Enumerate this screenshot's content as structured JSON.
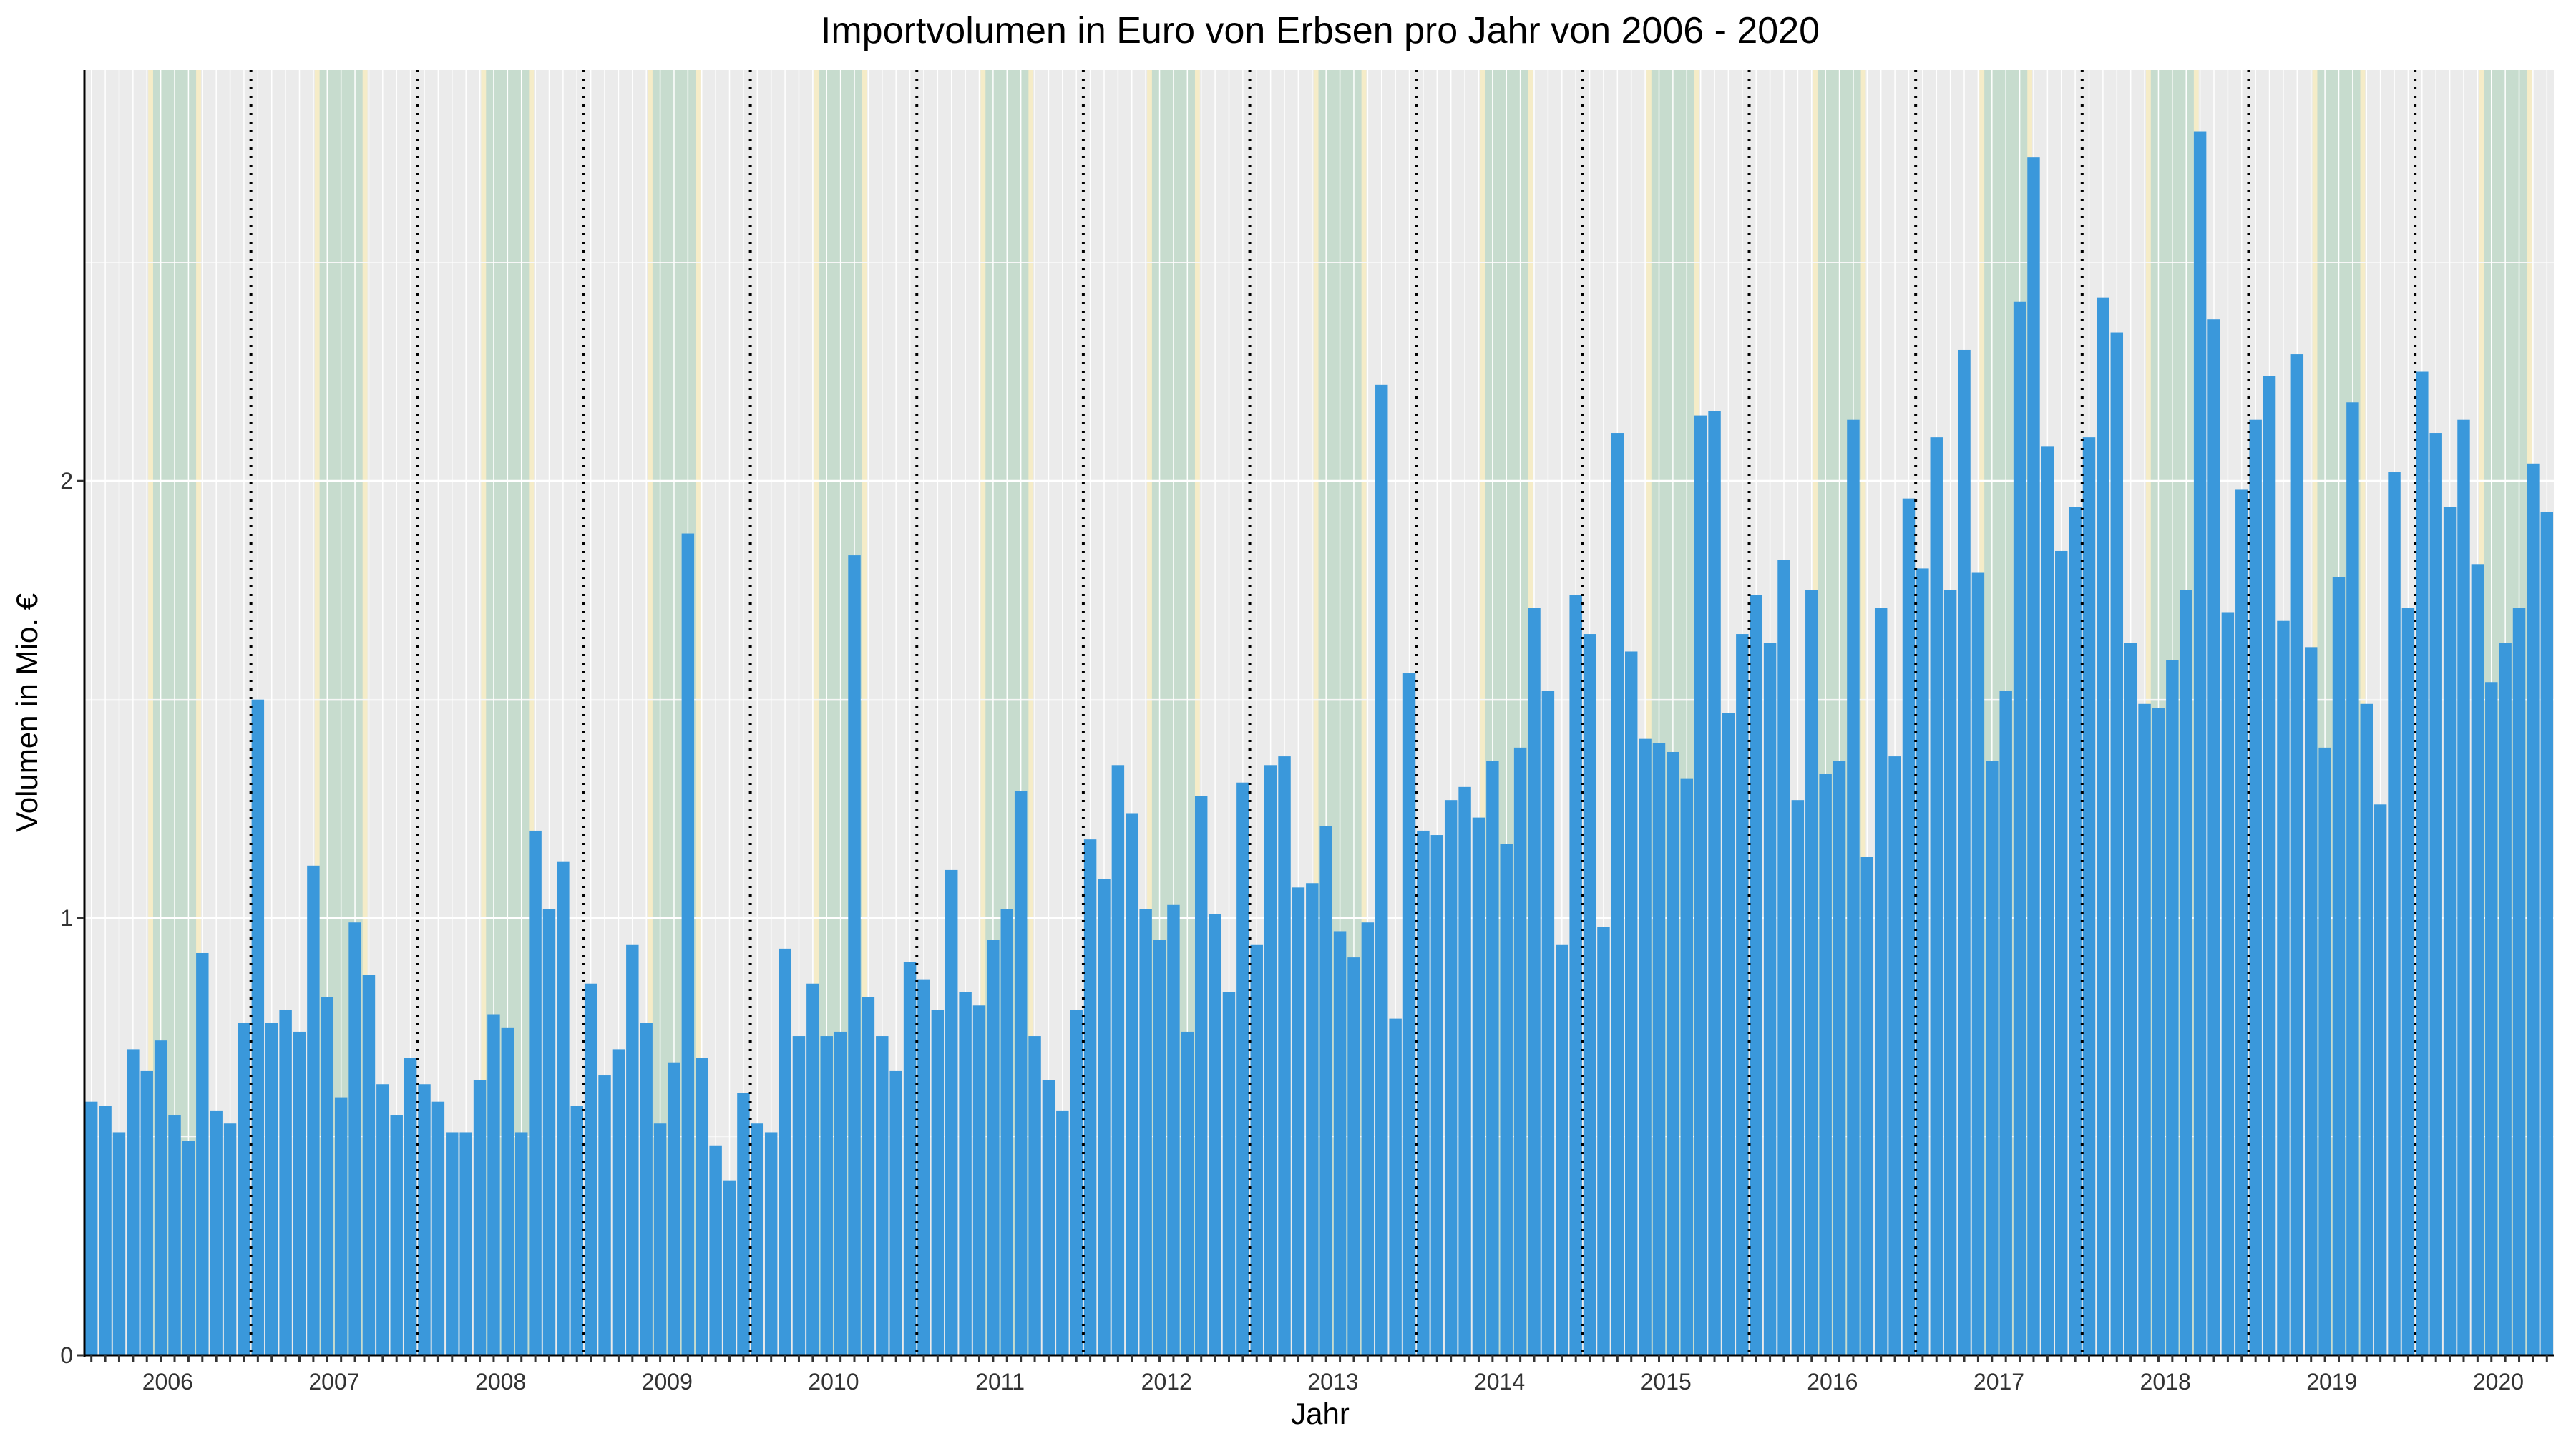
{
  "chart_data": {
    "type": "bar",
    "title": "Importvolumen in Euro von Erbsen pro Jahr von 2006 - 2020",
    "xlabel": "Jahr",
    "ylabel": "Volumen in Mio. €",
    "x_tick_labels": [
      "2006",
      "2007",
      "2008",
      "2009",
      "2010",
      "2011",
      "2012",
      "2013",
      "2014",
      "2015",
      "2016",
      "2017",
      "2018",
      "2019",
      "2020"
    ],
    "y_ticks": [
      0,
      1,
      2
    ],
    "y_tick_labels": [
      "0",
      "1",
      "2"
    ],
    "ylim": [
      0,
      2.94
    ],
    "unit": "Mio. €",
    "frequency": "monthly",
    "start": "2006-01",
    "months_per_year": 12,
    "summer_months_highlighted": [
      "Jun",
      "Jul",
      "Aug"
    ],
    "year_separators": "dotted",
    "bar_color": "#3a98db",
    "panel_color": "#ebebeb",
    "summer_band_colors": [
      "#f5ecc8",
      "#c2dace"
    ],
    "values": [
      0.58,
      0.57,
      0.51,
      0.7,
      0.65,
      0.72,
      0.55,
      0.49,
      0.92,
      0.56,
      0.53,
      0.76,
      1.5,
      0.76,
      0.79,
      0.74,
      1.12,
      0.82,
      0.59,
      0.99,
      0.87,
      0.62,
      0.55,
      0.68,
      0.62,
      0.58,
      0.51,
      0.51,
      0.63,
      0.78,
      0.75,
      0.51,
      1.2,
      1.02,
      1.13,
      0.57,
      0.85,
      0.64,
      0.7,
      0.94,
      0.76,
      0.53,
      0.67,
      1.88,
      0.68,
      0.48,
      0.4,
      0.6,
      0.53,
      0.51,
      0.93,
      0.73,
      0.85,
      0.73,
      0.74,
      1.83,
      0.82,
      0.73,
      0.65,
      0.9,
      0.86,
      0.79,
      1.11,
      0.83,
      0.8,
      0.95,
      1.02,
      1.29,
      0.73,
      0.63,
      0.56,
      0.79,
      1.18,
      1.09,
      1.35,
      1.24,
      1.02,
      0.95,
      1.03,
      0.74,
      1.28,
      1.01,
      0.83,
      1.31,
      0.94,
      1.35,
      1.37,
      1.07,
      1.08,
      1.21,
      0.97,
      0.91,
      0.99,
      2.22,
      0.77,
      1.56,
      1.2,
      1.19,
      1.27,
      1.3,
      1.23,
      1.36,
      1.17,
      1.39,
      1.71,
      1.52,
      0.94,
      1.74,
      1.65,
      0.98,
      2.11,
      1.61,
      1.41,
      1.4,
      1.38,
      1.32,
      2.15,
      2.16,
      1.47,
      1.65,
      1.74,
      1.63,
      1.82,
      1.27,
      1.75,
      1.33,
      1.36,
      2.14,
      1.14,
      1.71,
      1.37,
      1.96,
      1.8,
      2.1,
      1.75,
      2.3,
      1.79,
      1.36,
      1.52,
      2.41,
      2.74,
      2.08,
      1.84,
      1.94,
      2.1,
      2.42,
      2.34,
      1.63,
      1.49,
      1.48,
      1.59,
      1.75,
      2.8,
      2.37,
      1.7,
      1.98,
      2.14,
      2.24,
      1.68,
      2.29,
      1.62,
      1.39,
      1.78,
      2.18,
      1.49,
      1.26,
      2.02,
      1.71,
      2.25,
      2.11,
      1.94,
      2.14,
      1.81,
      1.54,
      1.63,
      1.71,
      2.04,
      1.93
    ]
  }
}
